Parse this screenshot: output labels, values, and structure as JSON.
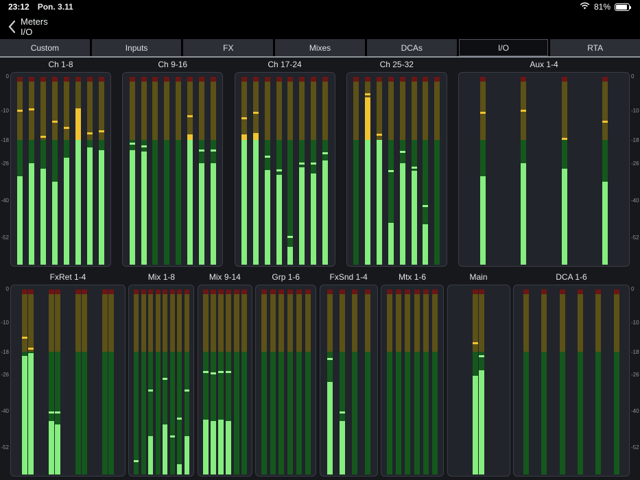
{
  "status_bar": {
    "time": "23:12",
    "date": "Pon. 3.11",
    "battery_percent": "81%",
    "wifi_icon": "wifi-icon",
    "battery_icon": "battery-icon"
  },
  "nav": {
    "back_icon": "chevron-left-icon",
    "title": "Meters",
    "subtitle": "I/O"
  },
  "tabs": {
    "items": [
      "Custom",
      "Inputs",
      "FX",
      "Mixes",
      "DCAs",
      "I/O",
      "RTA"
    ],
    "selected": "I/O"
  },
  "scale": {
    "unit": "dB",
    "ticks": [
      0,
      -10,
      -18,
      -26,
      -40,
      -52
    ]
  },
  "colors": {
    "lit_green": "#85ee7e",
    "lit_yellow": "#f2c331",
    "dim_green": "#15581d",
    "dim_yellow": "#5c5117",
    "clip_red": "#6b1614",
    "panel": "#21242b",
    "background": "#16181c"
  },
  "rows": [
    {
      "groups": [
        {
          "id": "ch1-8",
          "label": "Ch 1-8",
          "stereo": false,
          "bars": [
            {
              "level": -31,
              "peak": -10
            },
            {
              "level": -26,
              "peak": -9.5
            },
            {
              "level": -28,
              "peak": -17
            },
            {
              "level": -33,
              "peak": -13
            },
            {
              "level": -24,
              "peak": -14.5
            },
            {
              "level": -10,
              "peak": -9.5
            },
            {
              "level": -20.5,
              "peak": -16
            },
            {
              "level": -21.5,
              "peak": -15.5
            }
          ]
        },
        {
          "id": "ch9-16",
          "label": "Ch 9-16",
          "stereo": false,
          "bars": [
            {
              "level": -21.5,
              "peak": -19
            },
            {
              "level": -22,
              "peak": -20
            },
            {
              "level": null,
              "peak": null
            },
            {
              "level": null,
              "peak": null
            },
            {
              "level": null,
              "peak": null
            },
            {
              "level": -16.5,
              "peak": -11.5
            },
            {
              "level": -26,
              "peak": -21.5
            },
            {
              "level": -26,
              "peak": -21.5
            }
          ]
        },
        {
          "id": "ch17-24",
          "label": "Ch 17-24",
          "stereo": false,
          "bars": [
            {
              "level": -16.5,
              "peak": -12
            },
            {
              "level": -16,
              "peak": -10.5
            },
            {
              "level": -28.5,
              "peak": -23.5
            },
            {
              "level": -30.5,
              "peak": -28.5
            },
            {
              "level": -55,
              "peak": -52
            },
            {
              "level": -27.5,
              "peak": -26
            },
            {
              "level": -30,
              "peak": -26
            },
            {
              "level": -25,
              "peak": -22.5
            }
          ]
        },
        {
          "id": "ch25-32",
          "label": "Ch 25-32",
          "stereo": false,
          "bars": [
            {
              "level": null,
              "peak": null
            },
            {
              "level": -6,
              "peak": -5
            },
            {
              "level": -18,
              "peak": -16.5
            },
            {
              "level": -47.5,
              "peak": -29
            },
            {
              "level": -26,
              "peak": -22
            },
            {
              "level": -29,
              "peak": -27.5
            },
            {
              "level": -48,
              "peak": -42
            },
            {
              "level": null,
              "peak": null
            }
          ]
        },
        {
          "id": "aux1-4",
          "label": "Aux 1-4",
          "stereo": false,
          "bars": [
            {
              "level": -31,
              "peak": -10.5
            },
            {
              "level": -26,
              "peak": -10
            },
            {
              "level": -28,
              "peak": -17.5
            },
            {
              "level": -33,
              "peak": -13
            }
          ]
        }
      ]
    },
    {
      "groups": [
        {
          "id": "fxret1-4",
          "label": "FxRet 1-4",
          "stereo": true,
          "bars": [
            {
              "level": -19.5,
              "peak": -14
            },
            {
              "level": -18.5,
              "peak": -17
            },
            {
              "level": -43.5,
              "peak": -40.5
            },
            {
              "level": -44.5,
              "peak": -40.5
            },
            {
              "level": null,
              "peak": null
            },
            {
              "level": null,
              "peak": null
            },
            {
              "level": null,
              "peak": null
            },
            {
              "level": null,
              "peak": null
            }
          ]
        },
        {
          "id": "mix1-8",
          "label": "Mix 1-8",
          "stereo": false,
          "bars": [
            {
              "level": null,
              "peak": -56
            },
            {
              "level": null,
              "peak": null
            },
            {
              "level": -48.5,
              "peak": -32
            },
            {
              "level": null,
              "peak": null
            },
            {
              "level": -44.5,
              "peak": -27.5
            },
            {
              "level": null,
              "peak": -48.5
            },
            {
              "level": -57,
              "peak": -42.5
            },
            {
              "level": -48.5,
              "peak": -32
            }
          ]
        },
        {
          "id": "mix9-14",
          "label": "Mix 9-14",
          "stereo": false,
          "bars": [
            {
              "level": -43,
              "peak": -25
            },
            {
              "level": -43.5,
              "peak": -25.5
            },
            {
              "level": -43,
              "peak": -25
            },
            {
              "level": -43.5,
              "peak": -25
            },
            {
              "level": null,
              "peak": null
            },
            {
              "level": null,
              "peak": null
            }
          ]
        },
        {
          "id": "grp1-6",
          "label": "Grp 1-6",
          "stereo": false,
          "bars": [
            {
              "level": null,
              "peak": null
            },
            {
              "level": null,
              "peak": null
            },
            {
              "level": null,
              "peak": null
            },
            {
              "level": null,
              "peak": null
            },
            {
              "level": null,
              "peak": null
            },
            {
              "level": null,
              "peak": null
            }
          ]
        },
        {
          "id": "fxsnd1-4",
          "label": "FxSnd 1-4",
          "stereo": false,
          "bars": [
            {
              "level": -29,
              "peak": -20.5
            },
            {
              "level": -43.5,
              "peak": -40.5
            },
            {
              "level": null,
              "peak": null
            },
            {
              "level": null,
              "peak": null
            }
          ]
        },
        {
          "id": "mtx1-6",
          "label": "Mtx 1-6",
          "stereo": false,
          "bars": [
            {
              "level": null,
              "peak": null
            },
            {
              "level": null,
              "peak": null
            },
            {
              "level": null,
              "peak": null
            },
            {
              "level": null,
              "peak": null
            },
            {
              "level": null,
              "peak": null
            },
            {
              "level": null,
              "peak": null
            }
          ]
        },
        {
          "id": "main",
          "label": "Main",
          "stereo": true,
          "bars": [
            {
              "level": -26.5,
              "peak": -15.5
            },
            {
              "level": -24.5,
              "peak": -19.5
            }
          ]
        },
        {
          "id": "dca1-6",
          "label": "DCA 1-6",
          "stereo": false,
          "bars": [
            {
              "level": null,
              "peak": null
            },
            {
              "level": null,
              "peak": null
            },
            {
              "level": null,
              "peak": null
            },
            {
              "level": null,
              "peak": null
            },
            {
              "level": null,
              "peak": null
            },
            {
              "level": null,
              "peak": null
            }
          ]
        }
      ]
    }
  ]
}
